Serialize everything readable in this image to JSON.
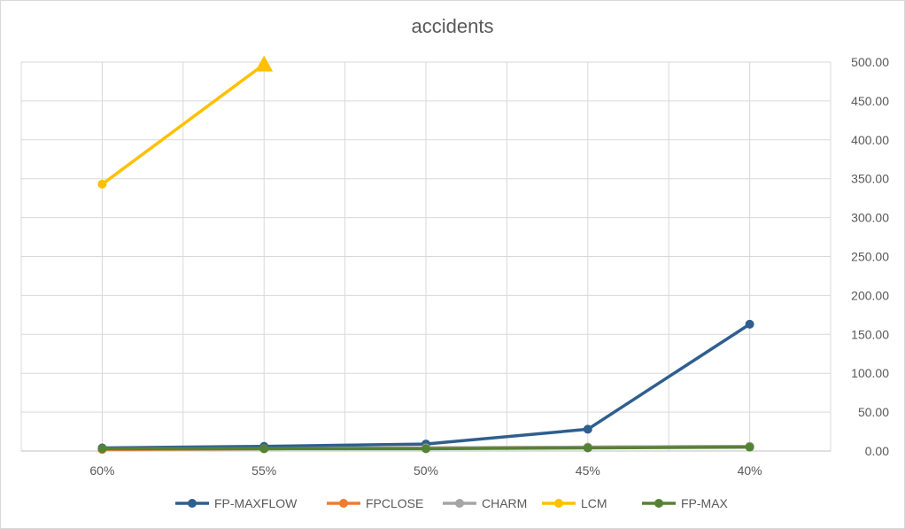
{
  "chart_data": {
    "type": "line",
    "title": "accidents",
    "categories": [
      "60%",
      "55%",
      "50%",
      "45%",
      "40%"
    ],
    "ylim": [
      0,
      500
    ],
    "yticks": [
      "0.00",
      "50.00",
      "100.00",
      "150.00",
      "200.00",
      "250.00",
      "300.00",
      "350.00",
      "400.00",
      "450.00",
      "500.00"
    ],
    "y_axis_position": "right",
    "grid": true,
    "legend_position": "bottom",
    "series": [
      {
        "name": "FP-MAXFLOW",
        "color": "#2e5f8f",
        "values": [
          4,
          6,
          9,
          28,
          163
        ]
      },
      {
        "name": "FPCLOSE",
        "color": "#ed7d31",
        "values": [
          2,
          3,
          4,
          5,
          6
        ]
      },
      {
        "name": "CHARM",
        "color": "#a5a5a5",
        "values": [
          3,
          3,
          4,
          5,
          6
        ]
      },
      {
        "name": "LCM",
        "color": "#ffc000",
        "values": [
          343,
          497,
          null,
          null,
          null
        ]
      },
      {
        "name": "FP-MAX",
        "color": "#548235",
        "values": [
          3,
          3,
          3,
          4,
          5
        ]
      }
    ]
  }
}
